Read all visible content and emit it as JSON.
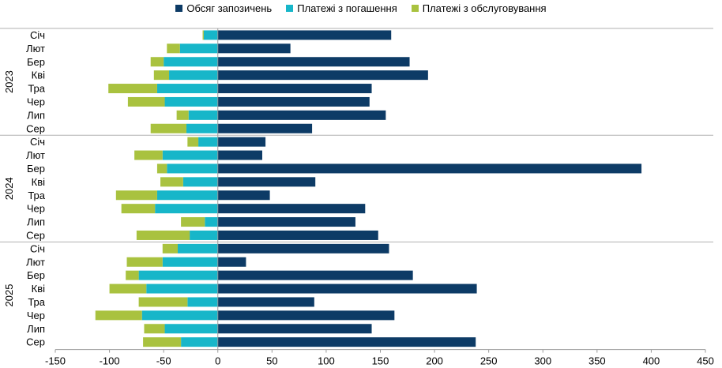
{
  "chart_data": {
    "type": "bar",
    "orientation": "horizontal",
    "stacked": true,
    "legend_position": "top",
    "grid": false,
    "xlim": [
      -150,
      450
    ],
    "x_ticks": [
      "-150",
      "-100",
      "-50",
      "0",
      "50",
      "100",
      "150",
      "200",
      "250",
      "300",
      "350",
      "400",
      "450"
    ],
    "groups": [
      {
        "label": "2023",
        "categories": [
          "Січ",
          "Лют",
          "Бер",
          "Кві",
          "Тра",
          "Чер",
          "Лип",
          "Сер"
        ]
      },
      {
        "label": "2024",
        "categories": [
          "Січ",
          "Лют",
          "Бер",
          "Кві",
          "Тра",
          "Чер",
          "Лип",
          "Сер"
        ]
      },
      {
        "label": "2025",
        "categories": [
          "Січ",
          "Лют",
          "Бер",
          "Кві",
          "Тра",
          "Чер",
          "Лип",
          "Сер"
        ]
      }
    ],
    "series": [
      {
        "name": "Обсяг запозичень",
        "color": "#0d3b66",
        "values": [
          160,
          67,
          177,
          194,
          142,
          140,
          155,
          87,
          44,
          41,
          391,
          90,
          48,
          136,
          127,
          148,
          158,
          26,
          180,
          239,
          89,
          163,
          142,
          238
        ]
      },
      {
        "name": "Платежі з погашення",
        "color": "#17b6c9",
        "values": [
          -13,
          -35,
          -50,
          -45,
          -56,
          -49,
          -27,
          -29,
          -18,
          -51,
          -47,
          -32,
          -56,
          -58,
          -12,
          -26,
          -37,
          -51,
          -73,
          -66,
          -28,
          -70,
          -49,
          -34
        ]
      },
      {
        "name": "Платежі з обслуговування",
        "color": "#a9c23f",
        "values": [
          -1,
          -12,
          -12,
          -14,
          -45,
          -34,
          -11,
          -33,
          -10,
          -26,
          -9,
          -21,
          -38,
          -31,
          -22,
          -49,
          -14,
          -33,
          -12,
          -34,
          -45,
          -43,
          -19,
          -35
        ]
      }
    ]
  }
}
